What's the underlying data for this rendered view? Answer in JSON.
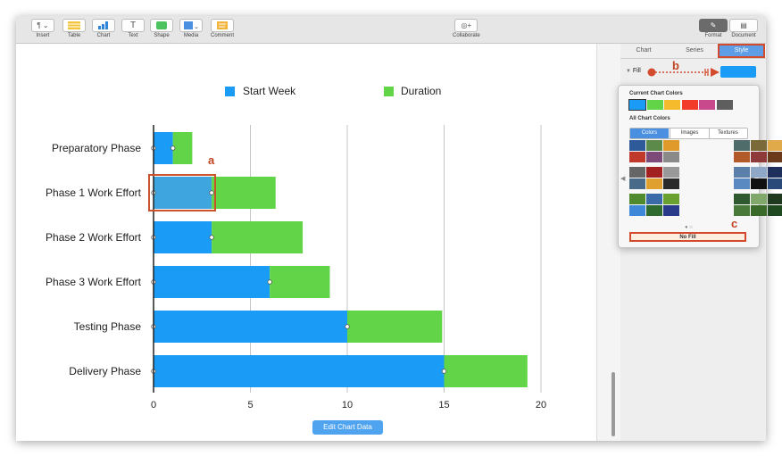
{
  "toolbar": {
    "items": [
      {
        "label": "Insert",
        "icon": "paragraph-icon"
      },
      {
        "label": "Table",
        "icon": "table-icon"
      },
      {
        "label": "Chart",
        "icon": "chart-icon"
      },
      {
        "label": "Text",
        "icon": "text-icon"
      },
      {
        "label": "Shape",
        "icon": "shape-icon"
      },
      {
        "label": "Media",
        "icon": "media-icon"
      },
      {
        "label": "Comment",
        "icon": "comment-icon"
      }
    ],
    "collaborate": "Collaborate",
    "format": "Format",
    "document": "Document"
  },
  "sidebar": {
    "tabs": [
      {
        "label": "Chart"
      },
      {
        "label": "Series"
      },
      {
        "label": "Style"
      }
    ],
    "fill_label": "Fill",
    "fill_color": "#1a9cf6"
  },
  "popover": {
    "current_title": "Current Chart Colors",
    "all_title": "All Chart Colors",
    "segments": [
      "Colors",
      "Images",
      "Textures"
    ],
    "no_fill": "No Fill",
    "current_colors": [
      "#1a9cf6",
      "#62d447",
      "#f6bb2c",
      "#f23b2b",
      "#c94a8c",
      "#5e5e5e"
    ]
  },
  "annotations": {
    "a": "a",
    "b": "b",
    "c": "c"
  },
  "edit_chart_data": "Edit Chart Data",
  "chart_data": {
    "type": "bar",
    "orientation": "horizontal",
    "stacked": true,
    "categories": [
      "Preparatory Phase",
      "Phase 1 Work Effort",
      "Phase 2 Work Effort",
      "Phase 3 Work Effort",
      "Testing Phase",
      "Delivery Phase"
    ],
    "series": [
      {
        "name": "Start Week",
        "values": [
          1,
          3,
          3,
          6,
          10,
          15
        ],
        "color": "#1a9cf6"
      },
      {
        "name": "Duration",
        "values": [
          1,
          3.3,
          4.7,
          3.1,
          4.9,
          4.3
        ],
        "color": "#62d447"
      }
    ],
    "xlim": [
      0,
      20
    ],
    "xticks": [
      "0",
      "5",
      "10",
      "15",
      "20"
    ],
    "title": "",
    "xlabel": "",
    "ylabel": "",
    "grid": true,
    "legend": "top",
    "selected_bar_color": "#3ea5de"
  }
}
